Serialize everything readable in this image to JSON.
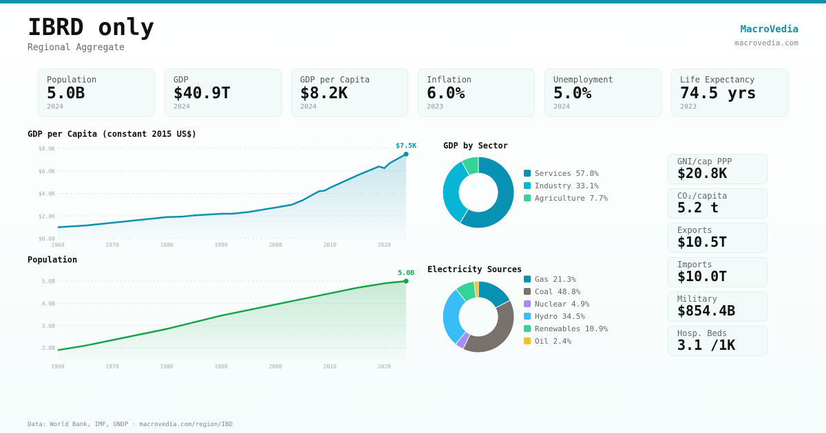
{
  "header": {
    "title": "IBRD only",
    "subtitle": "Regional Aggregate",
    "brand": "MacroVedia",
    "brand_url": "macrovedia.com"
  },
  "stats": [
    {
      "label": "Population",
      "value": "5.0B",
      "year": "2024"
    },
    {
      "label": "GDP",
      "value": "$40.9T",
      "year": "2024"
    },
    {
      "label": "GDP per Capita",
      "value": "$8.2K",
      "year": "2024"
    },
    {
      "label": "Inflation",
      "value": "6.0%",
      "year": "2023"
    },
    {
      "label": "Unemployment",
      "value": "5.0%",
      "year": "2024"
    },
    {
      "label": "Life Expectancy",
      "value": "74.5 yrs",
      "year": "2023"
    }
  ],
  "side_stats": [
    {
      "label": "GNI/cap PPP",
      "value": "$20.8K"
    },
    {
      "label": "CO₂/capita",
      "value": "5.2 t"
    },
    {
      "label": "Exports",
      "value": "$10.5T"
    },
    {
      "label": "Imports",
      "value": "$10.0T"
    },
    {
      "label": "Military",
      "value": "$854.4B"
    },
    {
      "label": "Hosp. Beds",
      "value": "3.1 /1K"
    }
  ],
  "footer": "Data: World Bank, IMF, UNDP · macrovedia.com/region/IBD",
  "chart_data": [
    {
      "type": "area",
      "title": "GDP per Capita (constant 2015 US$)",
      "color": "#0e8fae",
      "ylim": [
        0,
        8000
      ],
      "yticks": [
        "$0.00",
        "$2.0K",
        "$4.0K",
        "$6.0K",
        "$8.0K"
      ],
      "xticks": [
        "1960",
        "1970",
        "1980",
        "1990",
        "2000",
        "2010",
        "2020"
      ],
      "end_label": "$7.5K",
      "x": [
        1960,
        1965,
        1970,
        1975,
        1980,
        1983,
        1985,
        1990,
        1992,
        1995,
        2000,
        2003,
        2005,
        2008,
        2009,
        2010,
        2015,
        2019,
        2020,
        2021,
        2024
      ],
      "y": [
        1000,
        1150,
        1400,
        1650,
        1900,
        1950,
        2050,
        2200,
        2200,
        2350,
        2750,
        3000,
        3400,
        4200,
        4250,
        4500,
        5600,
        6400,
        6250,
        6700,
        7500
      ]
    },
    {
      "type": "area",
      "title": "Population",
      "color": "#16a34a",
      "ylim": [
        1.45,
        5.0
      ],
      "yticks": [
        "2.0B",
        "3.0B",
        "4.0B",
        "5.0B"
      ],
      "ytick_values": [
        2,
        3,
        4,
        5
      ],
      "xticks": [
        "1960",
        "1970",
        "1980",
        "1990",
        "2000",
        "2010",
        "2020"
      ],
      "end_label": "5.0B",
      "x": [
        1960,
        1965,
        1970,
        1975,
        1980,
        1985,
        1990,
        1995,
        2000,
        2005,
        2010,
        2015,
        2020,
        2024
      ],
      "y": [
        1.9,
        2.1,
        2.35,
        2.6,
        2.85,
        3.15,
        3.45,
        3.7,
        3.95,
        4.2,
        4.45,
        4.7,
        4.9,
        5.0
      ]
    },
    {
      "type": "pie",
      "title": "GDP by Sector",
      "labels": [
        "Services 57.8%",
        "Industry 33.1%",
        "Agriculture 7.7%"
      ],
      "values": [
        57.8,
        33.1,
        7.7
      ],
      "colors": [
        "#0891b2",
        "#06b6d4",
        "#34d399"
      ]
    },
    {
      "type": "pie",
      "title": "Electricity Sources",
      "labels": [
        "Gas 21.3%",
        "Coal 48.8%",
        "Nuclear 4.9%",
        "Hydro 34.5%",
        "Renewables 10.9%",
        "Oil 2.4%"
      ],
      "values": [
        21.3,
        48.8,
        4.9,
        34.5,
        10.9,
        2.4
      ],
      "colors": [
        "#0891b2",
        "#78716c",
        "#a78bfa",
        "#38bdf8",
        "#34d399",
        "#fbbf24"
      ]
    }
  ]
}
